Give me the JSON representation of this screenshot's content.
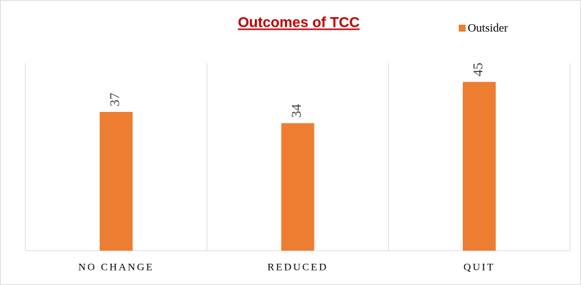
{
  "chart_data": {
    "type": "bar",
    "title": "Outcomes of TCC",
    "categories": [
      "NO CHANGE",
      "REDUCED",
      "QUIT"
    ],
    "series": [
      {
        "name": "Outsider",
        "color": "#ed7d31",
        "values": [
          37,
          34,
          45
        ]
      }
    ],
    "ylim": [
      0,
      50
    ],
    "legend": "top-right"
  }
}
